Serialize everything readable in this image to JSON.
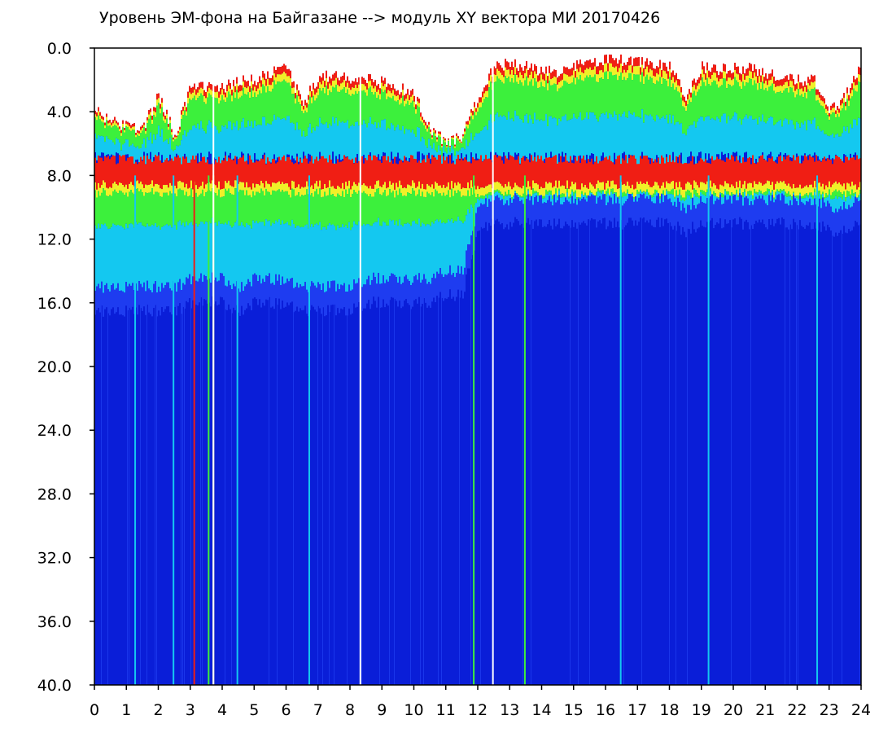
{
  "chart_data": {
    "type": "heatmap",
    "title": "Уровень ЭМ-фона на Байгазане  -->  модуль XY вектора МИ  20170426",
    "xlabel": "",
    "ylabel": "",
    "xlim": [
      0,
      24
    ],
    "ylim": [
      0,
      40
    ],
    "y_inverted": true,
    "grid": false,
    "legend": "none",
    "x_ticks": [
      "0",
      "1",
      "2",
      "3",
      "4",
      "5",
      "6",
      "7",
      "8",
      "9",
      "10",
      "11",
      "12",
      "13",
      "14",
      "15",
      "16",
      "17",
      "18",
      "19",
      "20",
      "21",
      "22",
      "23",
      "24"
    ],
    "y_ticks": [
      "0.0",
      "4.0",
      "8.0",
      "12.0",
      "16.0",
      "20.0",
      "24.0",
      "28.0",
      "32.0",
      "36.0",
      "40.0"
    ],
    "colors": {
      "background_low": "#0a1ed8",
      "low": "#1e3cf0",
      "mid_low": "#14c8f0",
      "mid": "#3cf03c",
      "mid_high": "#f0f028",
      "high": "#f01e14",
      "gap": "#ffffff"
    },
    "activity_profile": {
      "hours": [
        0,
        0.5,
        1,
        1.5,
        2,
        2.5,
        3,
        3.5,
        4,
        4.5,
        5,
        5.5,
        6,
        6.5,
        7,
        7.5,
        8,
        8.5,
        9,
        9.5,
        10,
        10.5,
        11,
        11.5,
        12,
        12.5,
        13,
        13.5,
        14,
        14.5,
        15,
        15.5,
        16,
        16.5,
        17,
        17.5,
        18,
        18.5,
        19,
        19.5,
        20,
        20.5,
        21,
        21.5,
        22,
        22.5,
        23,
        23.5,
        24
      ],
      "top_edge": [
        4.0,
        4.5,
        5.0,
        5.0,
        3.0,
        5.5,
        2.5,
        2.5,
        2.5,
        2.0,
        2.0,
        1.5,
        1.2,
        3.5,
        1.8,
        1.8,
        2.0,
        1.8,
        2.2,
        2.5,
        3.0,
        5.0,
        6.0,
        5.5,
        3.0,
        1.2,
        1.0,
        1.2,
        1.5,
        1.5,
        1.2,
        1.0,
        0.8,
        0.8,
        0.9,
        1.0,
        1.2,
        3.0,
        1.2,
        1.3,
        1.3,
        1.3,
        1.5,
        2.0,
        2.0,
        2.0,
        4.0,
        3.0,
        1.0
      ],
      "band_bottom": [
        15.0,
        15.0,
        15.0,
        15.0,
        15.0,
        15.0,
        14.5,
        14.5,
        14.5,
        15.0,
        14.5,
        14.5,
        14.5,
        15.0,
        15.0,
        15.0,
        15.0,
        14.5,
        14.5,
        14.5,
        14.5,
        14.5,
        14.0,
        14.0,
        10.0,
        9.5,
        9.5,
        9.5,
        9.5,
        9.5,
        9.5,
        9.5,
        9.5,
        9.5,
        9.5,
        9.5,
        9.5,
        10.0,
        9.5,
        9.5,
        9.5,
        9.5,
        9.5,
        9.5,
        9.5,
        9.5,
        10.0,
        10.0,
        9.5
      ]
    },
    "vertical_streaks": [
      {
        "hour": 1.25,
        "color": "#14c8f0"
      },
      {
        "hour": 2.45,
        "color": "#14c8f0"
      },
      {
        "hour": 3.1,
        "color": "#f01e14"
      },
      {
        "hour": 3.55,
        "color": "#3cf03c"
      },
      {
        "hour": 3.7,
        "color": "#f0f028"
      },
      {
        "hour": 4.45,
        "color": "#14c8f0"
      },
      {
        "hour": 6.7,
        "color": "#14c8f0"
      },
      {
        "hour": 11.85,
        "color": "#3cf03c"
      },
      {
        "hour": 13.45,
        "color": "#3cf03c"
      },
      {
        "hour": 16.45,
        "color": "#14c8f0"
      },
      {
        "hour": 19.2,
        "color": "#14c8f0"
      },
      {
        "hour": 22.6,
        "color": "#14c8f0"
      }
    ],
    "white_gaps": [
      8.3,
      12.45,
      3.7
    ]
  }
}
